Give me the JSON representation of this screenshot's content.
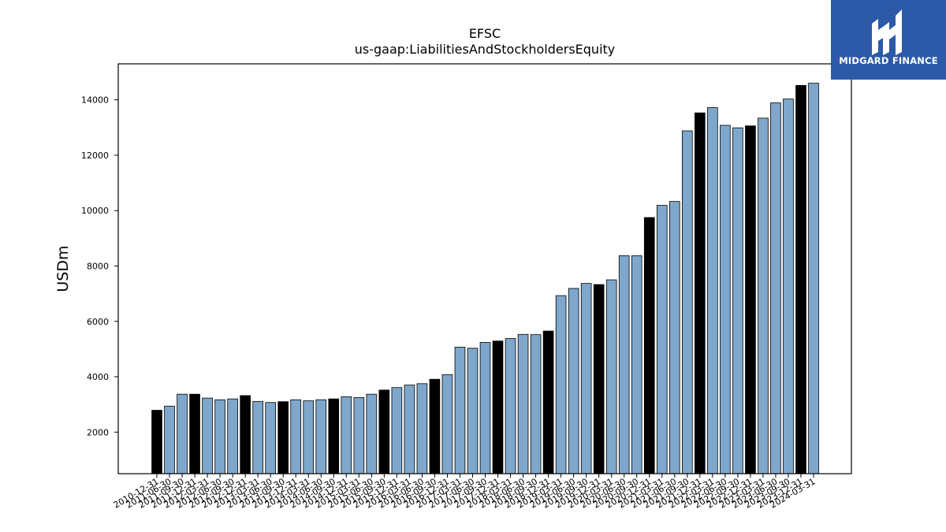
{
  "header": {
    "title": "EFSC",
    "subtitle": "us-gaap:LiabilitiesAndStockholdersEquity"
  },
  "logo": {
    "text": "MIDGARD FINANCE",
    "background": "#2d5aa8",
    "icon": "midgard-logo-icon"
  },
  "colors": {
    "bar_regular": "#7ea7cb",
    "bar_highlight": "#000000",
    "bar_edge": "#000000"
  },
  "chart_data": {
    "type": "bar",
    "title": "EFSC",
    "subtitle": "us-gaap:LiabilitiesAndStockholdersEquity",
    "xlabel": "",
    "ylabel": "USDm",
    "ylim": [
      500,
      15300
    ],
    "yticks": [
      2000,
      4000,
      6000,
      8000,
      10000,
      12000,
      14000
    ],
    "grid": false,
    "legend": "none",
    "categories": [
      "2010-12-31",
      "2011-06-30",
      "2011-09-30",
      "2011-12-31",
      "2012-03-31",
      "2012-06-30",
      "2012-09-30",
      "2012-12-31",
      "2013-03-31",
      "2013-06-30",
      "2013-09-30",
      "2013-12-31",
      "2014-03-31",
      "2014-06-30",
      "2014-09-30",
      "2014-12-31",
      "2015-03-31",
      "2015-06-30",
      "2015-09-30",
      "2015-12-31",
      "2016-03-31",
      "2016-06-30",
      "2016-09-30",
      "2016-12-31",
      "2017-03-31",
      "2017-06-30",
      "2017-09-30",
      "2017-12-31",
      "2018-03-31",
      "2018-06-30",
      "2018-09-30",
      "2018-12-31",
      "2019-03-31",
      "2019-06-30",
      "2019-09-30",
      "2019-12-31",
      "2020-03-31",
      "2020-06-30",
      "2020-09-30",
      "2020-12-31",
      "2021-03-31",
      "2021-06-30",
      "2021-09-30",
      "2021-12-31",
      "2022-03-31",
      "2022-06-30",
      "2022-09-30",
      "2022-12-31",
      "2023-03-31",
      "2023-06-30",
      "2023-09-30",
      "2023-12-31",
      "2024-03-31"
    ],
    "values": [
      2790,
      2940,
      3370,
      3370,
      3230,
      3170,
      3200,
      3320,
      3110,
      3070,
      3100,
      3170,
      3130,
      3170,
      3200,
      3280,
      3250,
      3370,
      3520,
      3610,
      3700,
      3750,
      3910,
      4080,
      5070,
      5030,
      5240,
      5290,
      5380,
      5530,
      5520,
      5650,
      6930,
      7190,
      7370,
      7330,
      7500,
      8370,
      8370,
      9750,
      10190,
      10330,
      12880,
      13530,
      13720,
      13080,
      12990,
      13060,
      13340,
      13890,
      14030,
      14520,
      14600
    ],
    "highlight": [
      true,
      false,
      false,
      true,
      false,
      false,
      false,
      true,
      false,
      false,
      true,
      false,
      false,
      false,
      true,
      false,
      false,
      false,
      true,
      false,
      false,
      false,
      true,
      false,
      false,
      false,
      false,
      true,
      false,
      false,
      false,
      true,
      false,
      false,
      false,
      true,
      false,
      false,
      false,
      true,
      false,
      false,
      false,
      true,
      false,
      false,
      false,
      true,
      false,
      false,
      false,
      true,
      false
    ]
  }
}
